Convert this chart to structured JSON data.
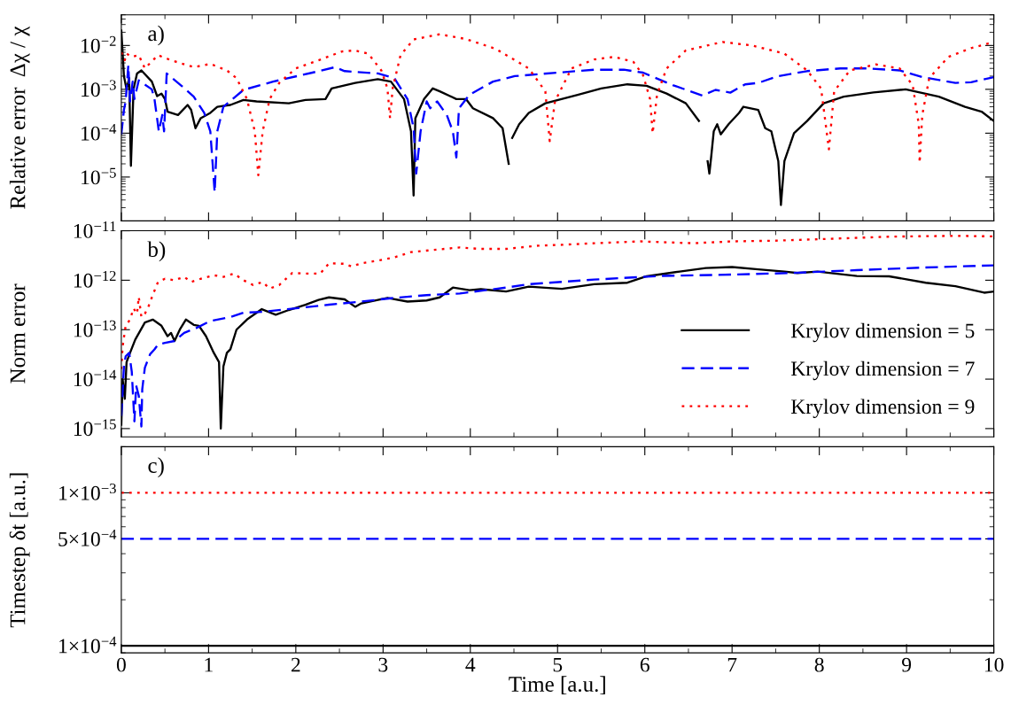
{
  "chart_data": [
    {
      "type": "line",
      "ylabel": "Relative error  Δχ / χ",
      "annotations": [
        "a)"
      ],
      "log": "y",
      "xlim": [
        0,
        10
      ],
      "xticks": [
        0,
        1,
        2,
        3,
        4,
        5,
        6,
        7,
        8,
        9,
        10
      ],
      "ylim": [
        1e-06,
        0.05
      ],
      "yticks": [
        {
          "value": 1e-05,
          "label": "10$^{−5}$"
        },
        {
          "value": 0.0001,
          "label": "10$^{−4}$"
        },
        {
          "value": 0.001,
          "label": "10$^{−3}$"
        },
        {
          "value": 0.01,
          "label": "10$^{−2}$"
        }
      ],
      "tick_labels": "y",
      "series": [
        {
          "color": "#000000",
          "line_style": "solid",
          "x": [
            0,
            0.03,
            0.06,
            0.09,
            0.11,
            0.14,
            0.18,
            0.23,
            0.35,
            0.41,
            0.46,
            0.5,
            0.53,
            0.65,
            0.76,
            0.8,
            0.85,
            0.91,
            1.02,
            1.1,
            1.25,
            1.4,
            1.55,
            1.92,
            2.11,
            2.34,
            2.41,
            2.68,
            2.94,
            3.09,
            3.24,
            3.32,
            3.35,
            3.37,
            3.47,
            3.57,
            3.65,
            3.84,
            3.95,
            4.03,
            4.26,
            4.37,
            4.44,
            4.46,
            4.48,
            4.56,
            4.67,
            4.86,
            5.23,
            5.5,
            5.8,
            6.02,
            6.25,
            6.47,
            6.62,
            6.68,
            6.72,
            6.74,
            6.76,
            6.79,
            6.83,
            6.87,
            6.96,
            7.08,
            7.13,
            7.3,
            7.38,
            7.45,
            7.53,
            7.56,
            7.6,
            7.71,
            7.86,
            8.05,
            8.28,
            8.62,
            8.99,
            9.37,
            9.67,
            9.86,
            10
          ],
          "values": [
            0.022,
            0.002,
            0.001,
            0.0018,
            1.8e-05,
            0.001,
            0.0023,
            0.0027,
            0.0015,
            0.0007,
            0.0008,
            0.0006,
            0.00031,
            0.00026,
            0.00044,
            0.00034,
            0.00013,
            0.00022,
            0.00029,
            0.0004,
            0.00044,
            0.00057,
            0.00053,
            0.00048,
            0.00057,
            0.0006,
            0.00105,
            0.0014,
            0.0017,
            0.0015,
            0.0006,
            0.00011,
            3.8e-06,
            0.00022,
            0.0006,
            0.00105,
            0.0009,
            0.0006,
            0.0006,
            0.00037,
            0.00022,
            0.00013,
            2e-05,
            null,
            7.8e-05,
            0.00016,
            0.00029,
            0.00048,
            0.00075,
            0.00105,
            0.0013,
            0.0012,
            0.0008,
            0.00048,
            0.00019,
            null,
            2.3e-05,
            1.2e-05,
            2.8e-05,
            0.00011,
            0.00016,
            9.4e-05,
            0.00016,
            0.00029,
            0.0004,
            0.00034,
            0.00013,
            0.00011,
            2.3e-05,
            2.3e-06,
            2.3e-05,
            0.0001,
            0.00019,
            0.00048,
            0.00068,
            0.00085,
            0.001,
            0.00068,
            0.0004,
            0.00031,
            0.00019
          ]
        },
        {
          "color": "#0000ff",
          "line_style": "dashed",
          "x": [
            0,
            0.03,
            0.05,
            0.08,
            0.1,
            0.13,
            0.15,
            0.2,
            0.35,
            0.38,
            0.43,
            0.47,
            0.49,
            0.52,
            0.68,
            0.83,
            0.95,
            1.02,
            1.07,
            1.1,
            1.17,
            1.4,
            1.74,
            2.19,
            2.45,
            2.56,
            2.94,
            3.13,
            3.28,
            3.35,
            3.38,
            3.43,
            3.5,
            3.54,
            3.62,
            3.73,
            3.8,
            3.84,
            3.87,
            3.99,
            4.26,
            4.51,
            5.0,
            5.42,
            5.76,
            5.98,
            6.32,
            6.66,
            6.81,
            6.98,
            7.15,
            7.3,
            7.53,
            7.86,
            8.24,
            8.54,
            8.92,
            9.18,
            9.56,
            9.74,
            10
          ],
          "values": [
            9.4e-05,
            0.00034,
            0.00053,
            0.0035,
            0.00053,
            0.0015,
            0.0006,
            0.0016,
            0.001,
            0.0006,
            0.00011,
            0.00026,
            0.00011,
            0.0023,
            0.00125,
            0.00068,
            0.00029,
            0.00011,
            4.5e-06,
            0.00011,
            0.0004,
            0.00097,
            0.0015,
            0.0024,
            0.0032,
            0.0026,
            0.0023,
            0.0018,
            0.0006,
            0.00013,
            1.2e-05,
            0.00011,
            0.00053,
            0.00037,
            0.00053,
            0.00026,
            0.00011,
            2.8e-05,
            0.00037,
            0.00075,
            0.0015,
            0.002,
            0.0024,
            0.0028,
            0.0028,
            0.0024,
            0.00125,
            0.00072,
            0.00097,
            0.00084,
            0.0013,
            0.0014,
            0.002,
            0.0026,
            0.003,
            0.003,
            0.0027,
            0.0019,
            0.0014,
            0.00145,
            0.0019
          ]
        },
        {
          "color": "#ff0000",
          "line_style": "dotted",
          "x": [
            0,
            0.04,
            0.06,
            0.12,
            0.2,
            0.27,
            0.42,
            0.57,
            0.83,
            1.02,
            1.21,
            1.32,
            1.44,
            1.53,
            1.57,
            1.62,
            1.7,
            1.81,
            2.0,
            2.26,
            2.53,
            2.68,
            2.83,
            2.98,
            3.05,
            3.08,
            3.11,
            3.2,
            3.35,
            3.65,
            3.95,
            4.29,
            4.67,
            4.86,
            4.91,
            4.97,
            5.16,
            5.42,
            5.65,
            5.87,
            5.98,
            6.06,
            6.09,
            6.14,
            6.25,
            6.47,
            6.89,
            7.23,
            7.6,
            7.86,
            8.02,
            8.11,
            8.17,
            8.35,
            8.65,
            8.92,
            9.07,
            9.14,
            9.15,
            9.18,
            9.26,
            9.48,
            9.74,
            9.93,
            10
          ],
          "values": [
            0.007,
            0.0046,
            0.0065,
            0.0055,
            0.006,
            0.003,
            0.006,
            0.0046,
            0.0032,
            0.0038,
            0.0027,
            0.0018,
            0.0006,
            0.00011,
            1.1e-05,
            0.00011,
            0.0006,
            0.0014,
            0.003,
            0.0046,
            0.0073,
            0.0077,
            0.0065,
            0.0027,
            0.00105,
            0.00022,
            0.00105,
            0.006,
            0.0137,
            0.018,
            0.014,
            0.0084,
            0.003,
            0.0009,
            6.6e-05,
            0.00053,
            0.003,
            0.0048,
            0.0055,
            0.0042,
            0.0021,
            0.0006,
            0.0001,
            0.00075,
            0.003,
            0.0077,
            0.012,
            0.01,
            0.0065,
            0.0027,
            0.00105,
            4.3e-05,
            0.0009,
            0.0027,
            0.0037,
            0.003,
            0.00125,
            0.00016,
            2.1e-05,
            0.00026,
            0.0018,
            0.0055,
            0.0087,
            0.011,
            0.0105
          ]
        }
      ]
    },
    {
      "type": "line",
      "ylabel": "Norm error",
      "annotations": [
        "b)"
      ],
      "log": "y",
      "legend": "bottom right",
      "xlim": [
        0,
        10
      ],
      "xticks": [
        0,
        1,
        2,
        3,
        4,
        5,
        6,
        7,
        8,
        9,
        10
      ],
      "ylim": [
        6.8e-16,
        1e-11
      ],
      "yticks": [
        {
          "value": 1e-15,
          "label": "10$^{−15}$"
        },
        {
          "value": 1e-14,
          "label": "10$^{−14}$"
        },
        {
          "value": 1e-13,
          "label": "10$^{−13}$"
        },
        {
          "value": 1e-12,
          "label": "10$^{−12}$"
        },
        {
          "value": 1e-11,
          "label": "10$^{−11}$"
        }
      ],
      "tick_labels": "y",
      "series": [
        {
          "name": "Krylov dimension = 5",
          "color": "#000000",
          "line_style": "solid",
          "x": [
            0,
            0.015,
            0.04,
            0.06,
            0.1,
            0.16,
            0.27,
            0.36,
            0.46,
            0.53,
            0.57,
            0.61,
            0.67,
            0.74,
            0.83,
            0.89,
            0.97,
            1.06,
            1.12,
            1.14,
            1.17,
            1.21,
            1.25,
            1.32,
            1.44,
            1.61,
            1.77,
            1.92,
            2.11,
            2.26,
            2.38,
            2.56,
            2.68,
            2.75,
            3.05,
            3.28,
            3.5,
            3.65,
            3.8,
            3.99,
            4.12,
            4.41,
            4.67,
            5.05,
            5.42,
            5.8,
            6.02,
            6.4,
            6.7,
            7.0,
            7.3,
            7.6,
            7.75,
            7.98,
            8.43,
            8.8,
            9.22,
            9.56,
            9.89,
            10
          ],
          "values": [
            1.2e-15,
            1e-14,
            4e-15,
            2.2e-14,
            3.4e-14,
            6.3e-14,
            1.4e-13,
            1.6e-13,
            1.2e-13,
            7.4e-14,
            8.6e-14,
            5.9e-14,
            1e-13,
            1.6e-13,
            1.25e-13,
            1.2e-13,
            7.4e-14,
            3.4e-14,
            2.2e-14,
            1e-15,
            1.8e-14,
            3.4e-14,
            4e-14,
            1e-13,
            1.6e-13,
            2.6e-13,
            2e-13,
            2.5e-13,
            3.2e-13,
            4e-13,
            4.5e-13,
            4.1e-13,
            2.9e-13,
            3.4e-13,
            4.4e-13,
            3.7e-13,
            3.9e-13,
            4.5e-13,
            7.1e-13,
            6.3e-13,
            6.6e-13,
            5.9e-13,
            7.4e-13,
            6.7e-13,
            8.3e-13,
            8.9e-13,
            1.2e-12,
            1.5e-12,
            1.76e-12,
            1.85e-12,
            1.66e-12,
            1.5e-12,
            1.4e-12,
            1.5e-12,
            1.22e-12,
            1.2e-12,
            8.9e-13,
            7.6e-13,
            5.6e-13,
            5.9e-13
          ]
        },
        {
          "name": "Krylov dimension = 7",
          "color": "#0000ff",
          "line_style": "dashed",
          "x": [
            0,
            0.03,
            0.05,
            0.09,
            0.12,
            0.15,
            0.17,
            0.2,
            0.23,
            0.24,
            0.27,
            0.33,
            0.38,
            0.42,
            0.5,
            0.61,
            0.72,
            0.87,
            1.02,
            1.25,
            1.4,
            1.62,
            2.0,
            2.38,
            2.75,
            3.13,
            3.5,
            3.88,
            4.41,
            4.67,
            5.42,
            6.17,
            7.0,
            7.68,
            8.43,
            9.18,
            10
          ],
          "values": [
            1.8e-15,
            1.8e-14,
            2.9e-14,
            3.4e-14,
            1.4e-14,
            1.4e-15,
            7.4e-15,
            4.6e-15,
            1.1e-15,
            6.3e-15,
            1.7e-14,
            3.2e-14,
            4e-14,
            5e-14,
            5.4e-14,
            5.9e-14,
            8.6e-14,
            1.1e-13,
            1.5e-13,
            1.8e-13,
            2.2e-13,
            2.3e-13,
            2.7e-13,
            3.2e-13,
            3.7e-13,
            4.4e-13,
            5e-13,
            5.4e-13,
            7.1e-13,
            8.3e-13,
            1.03e-12,
            1.22e-12,
            1.3e-12,
            1.4e-12,
            1.6e-12,
            1.8e-12,
            2e-12
          ]
        },
        {
          "name": "Krylov dimension = 9",
          "color": "#ff0000",
          "line_style": "dotted",
          "x": [
            0,
            0.015,
            0.05,
            0.1,
            0.14,
            0.18,
            0.2,
            0.23,
            0.27,
            0.31,
            0.36,
            0.42,
            0.5,
            0.61,
            0.72,
            0.8,
            0.91,
            1.06,
            1.17,
            1.29,
            1.4,
            1.51,
            1.62,
            1.7,
            1.81,
            1.96,
            2.11,
            2.28,
            2.38,
            2.56,
            2.64,
            2.75,
            2.94,
            3.13,
            3.32,
            3.58,
            3.88,
            4.11,
            4.41,
            4.78,
            5.05,
            5.42,
            5.95,
            6.55,
            7.0,
            7.49,
            8.05,
            8.8,
            9.56,
            10
          ],
          "values": [
            1.6e-14,
            4.6e-14,
            1.2e-13,
            1.6e-13,
            2.7e-13,
            2.1e-13,
            4.6e-13,
            1.8e-13,
            2.1e-13,
            2.9e-13,
            5e-13,
            9.2e-13,
            1.07e-12,
            1e-12,
            1.17e-12,
            9.2e-13,
            1.07e-12,
            1.26e-12,
            1.17e-12,
            1.36e-12,
            1e-12,
            8e-13,
            9.2e-13,
            6.8e-13,
            8e-13,
            1.4e-12,
            1.36e-12,
            1.36e-12,
            2.2e-12,
            2.15e-12,
            1.9e-12,
            2.2e-12,
            2.5e-12,
            2.9e-12,
            3.7e-12,
            4.1e-12,
            4.6e-12,
            4.3e-12,
            4.3e-12,
            5e-12,
            5.2e-12,
            5.6e-12,
            6.1e-12,
            5.6e-12,
            6.1e-12,
            6.3e-12,
            6.8e-12,
            7.6e-12,
            7.9e-12,
            7.7e-12
          ]
        }
      ]
    },
    {
      "type": "line",
      "xlabel": "Time [a.u.]",
      "ylabel": "Timestep δt [a.u.]",
      "annotations": [
        "c)"
      ],
      "log": "y",
      "xlim": [
        0,
        10
      ],
      "xticks": [
        0,
        1,
        2,
        3,
        4,
        5,
        6,
        7,
        8,
        9,
        10
      ],
      "ylim": [
        9e-05,
        0.002
      ],
      "yticks": [
        {
          "value": 0.0001,
          "label": "1×10$^{−4}$"
        },
        {
          "value": 0.0005,
          "label": "5×10$^{−4}$"
        },
        {
          "value": 0.001,
          "label": "1×10$^{−3}$"
        }
      ],
      "series": [
        {
          "color": "#000000",
          "line_style": "solid",
          "x": [
            0,
            10
          ],
          "values": [
            0.0001,
            0.0001
          ]
        },
        {
          "color": "#0000ff",
          "line_style": "dashed",
          "x": [
            0,
            10
          ],
          "values": [
            0.0005,
            0.0005
          ]
        },
        {
          "color": "#ff0000",
          "line_style": "dotted",
          "x": [
            0,
            10
          ],
          "values": [
            0.001,
            0.001
          ]
        }
      ]
    }
  ]
}
